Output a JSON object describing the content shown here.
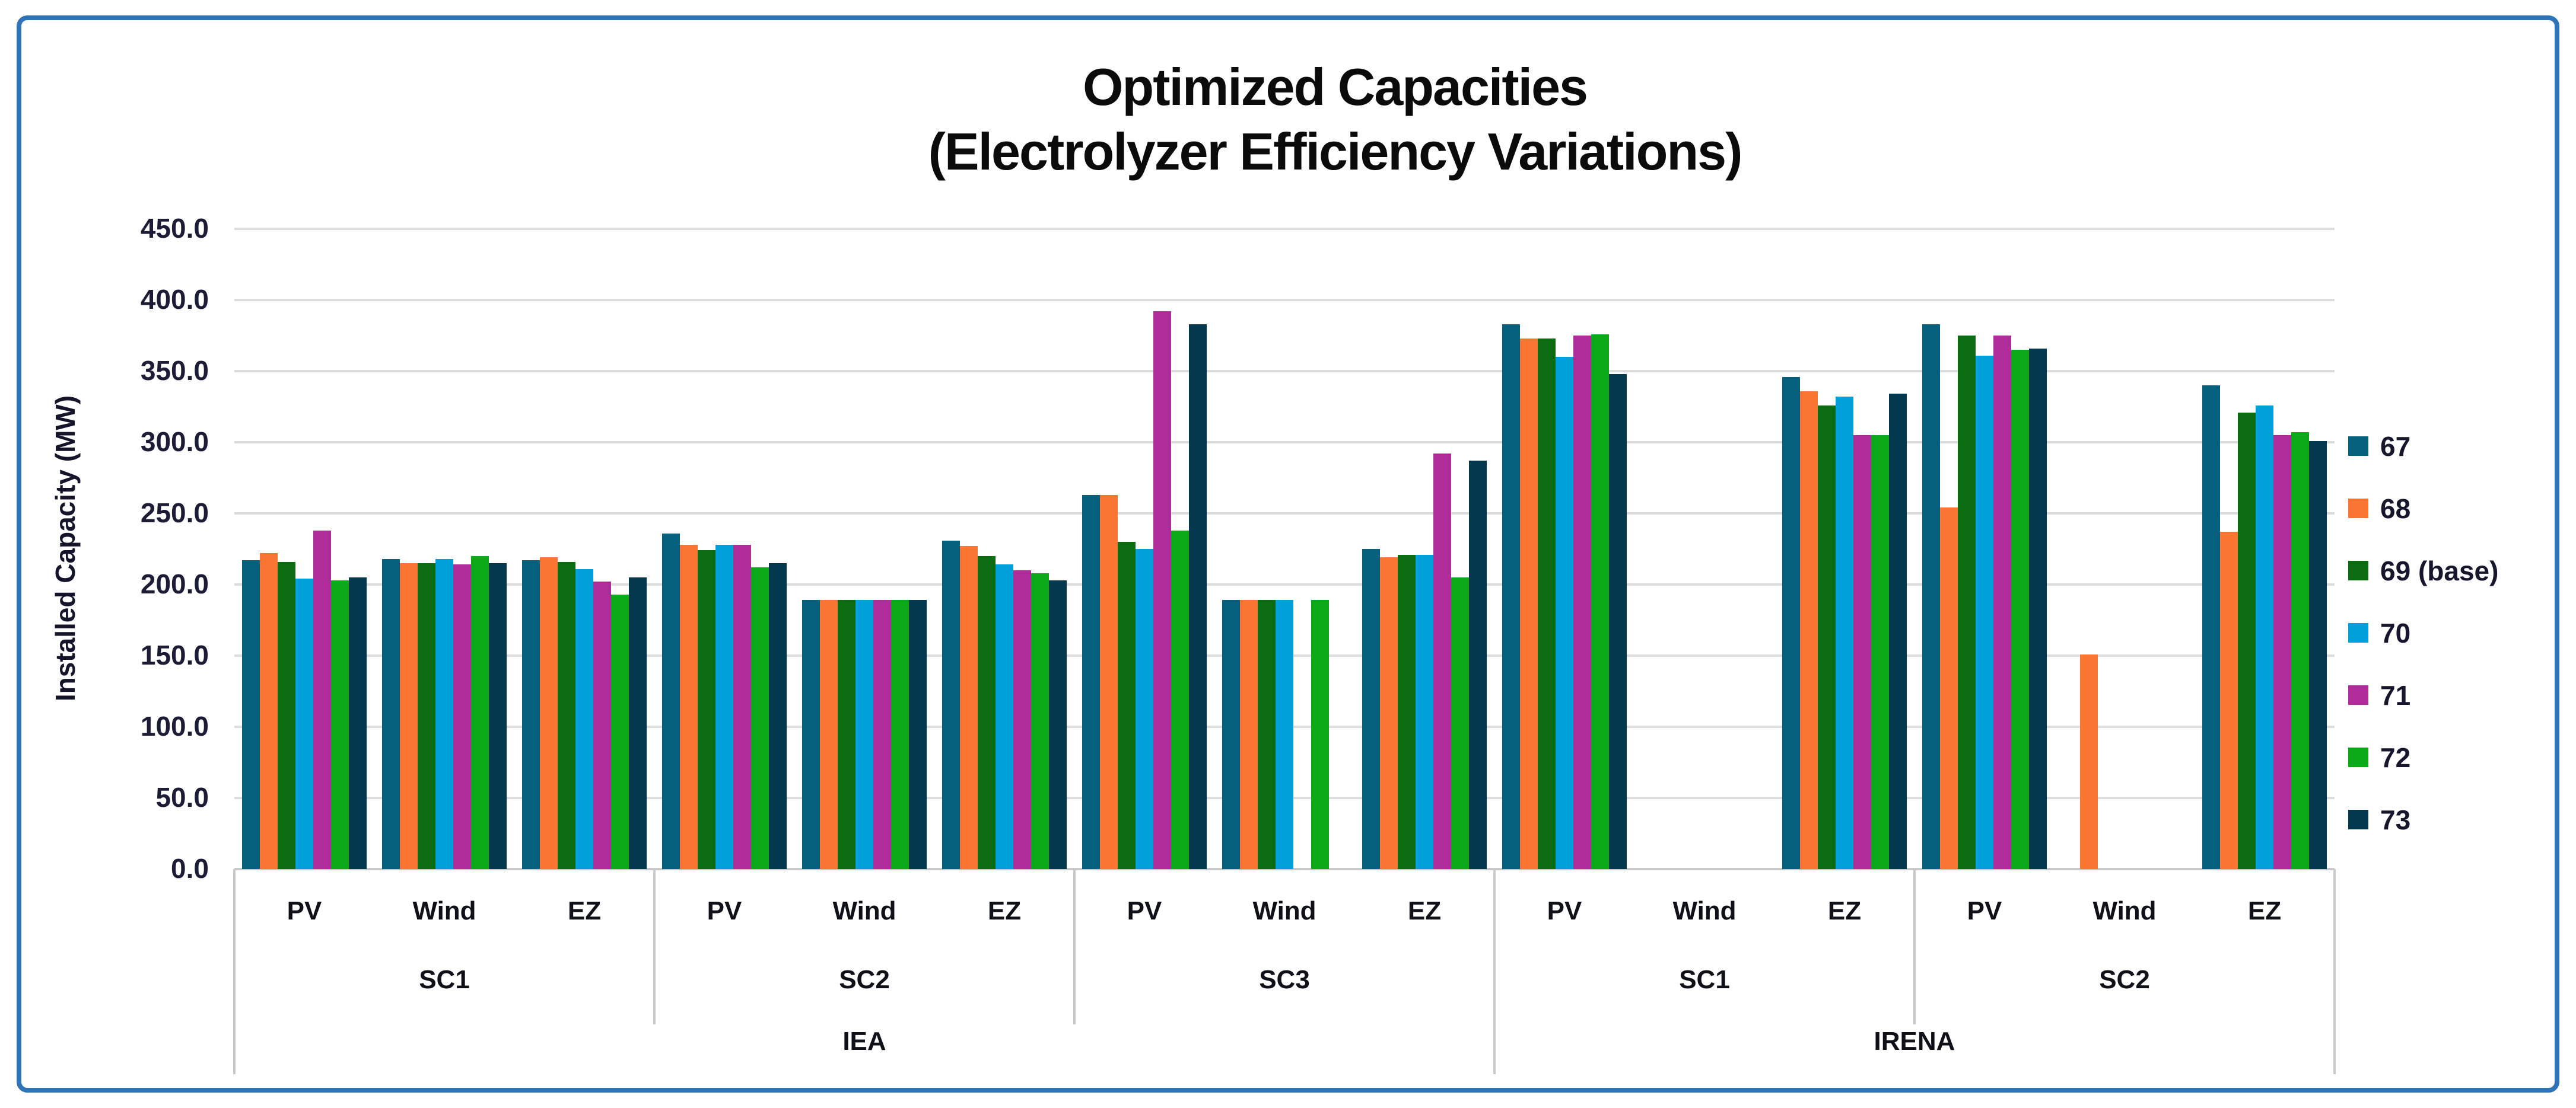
{
  "title": {
    "line1": "Optimized Capacities",
    "line2": "(Electrolyzer Efficiency Variations)"
  },
  "y_axis": {
    "label": "Installed Capacity (MW)",
    "min": 0,
    "max": 450,
    "step": 50,
    "tick_labels": [
      "0.0",
      "50.0",
      "100.0",
      "150.0",
      "200.0",
      "250.0",
      "300.0",
      "350.0",
      "400.0",
      "450.0"
    ]
  },
  "legend": {
    "position": "right",
    "items": [
      {
        "label": "67",
        "color": "#05607E"
      },
      {
        "label": "68",
        "color": "#FA7432"
      },
      {
        "label": "69 (base)",
        "color": "#0B6C12"
      },
      {
        "label": "70",
        "color": "#02A0DA"
      },
      {
        "label": "71",
        "color": "#B02C9B"
      },
      {
        "label": "72",
        "color": "#0BA918"
      },
      {
        "label": "73",
        "color": "#04384E"
      }
    ]
  },
  "chart_data": {
    "type": "bar",
    "title": "Optimized Capacities (Electrolyzer Efficiency Variations)",
    "ylabel": "Installed Capacity (MW)",
    "ylim": [
      0,
      450
    ],
    "grid": true,
    "legend_position": "right",
    "series_names": [
      "67",
      "68",
      "69 (base)",
      "70",
      "71",
      "72",
      "73"
    ],
    "series_colors": [
      "#05607E",
      "#FA7432",
      "#0B6C12",
      "#02A0DA",
      "#B02C9B",
      "#0BA918",
      "#04384E"
    ],
    "groups": [
      {
        "agency": "IEA",
        "scenarios": [
          {
            "name": "SC1",
            "categories": [
              {
                "name": "PV",
                "values": [
                  217,
                  222,
                  216,
                  204,
                  238,
                  203,
                  205
                ]
              },
              {
                "name": "Wind",
                "values": [
                  218,
                  215,
                  215,
                  218,
                  214,
                  220,
                  215
                ]
              },
              {
                "name": "EZ",
                "values": [
                  217,
                  219,
                  216,
                  211,
                  202,
                  193,
                  205
                ]
              }
            ]
          },
          {
            "name": "SC2",
            "categories": [
              {
                "name": "PV",
                "values": [
                  236,
                  228,
                  224,
                  228,
                  228,
                  212,
                  215
                ]
              },
              {
                "name": "Wind",
                "values": [
                  189,
                  189,
                  189,
                  189,
                  189,
                  189,
                  189
                ]
              },
              {
                "name": "EZ",
                "values": [
                  231,
                  227,
                  220,
                  214,
                  210,
                  208,
                  203
                ]
              }
            ]
          },
          {
            "name": "SC3",
            "categories": [
              {
                "name": "PV",
                "values": [
                  263,
                  263,
                  230,
                  225,
                  392,
                  238,
                  383
                ]
              },
              {
                "name": "Wind",
                "values": [
                  189,
                  189,
                  189,
                  189,
                  null,
                  189,
                  null
                ]
              },
              {
                "name": "EZ",
                "values": [
                  225,
                  219,
                  221,
                  221,
                  292,
                  205,
                  287
                ]
              }
            ]
          }
        ]
      },
      {
        "agency": "IRENA",
        "scenarios": [
          {
            "name": "SC1",
            "categories": [
              {
                "name": "PV",
                "values": [
                  383,
                  373,
                  373,
                  360,
                  375,
                  376,
                  348
                ]
              },
              {
                "name": "Wind",
                "values": [
                  null,
                  null,
                  null,
                  null,
                  null,
                  null,
                  null
                ]
              },
              {
                "name": "EZ",
                "values": [
                  346,
                  336,
                  326,
                  332,
                  305,
                  305,
                  334
                ]
              }
            ]
          },
          {
            "name": "SC2",
            "categories": [
              {
                "name": "PV",
                "values": [
                  383,
                  254,
                  375,
                  361,
                  375,
                  365,
                  366
                ]
              },
              {
                "name": "Wind",
                "values": [
                  null,
                  151,
                  null,
                  null,
                  null,
                  null,
                  null
                ]
              },
              {
                "name": "EZ",
                "values": [
                  340,
                  237,
                  321,
                  326,
                  305,
                  307,
                  301
                ]
              }
            ]
          }
        ]
      }
    ]
  }
}
